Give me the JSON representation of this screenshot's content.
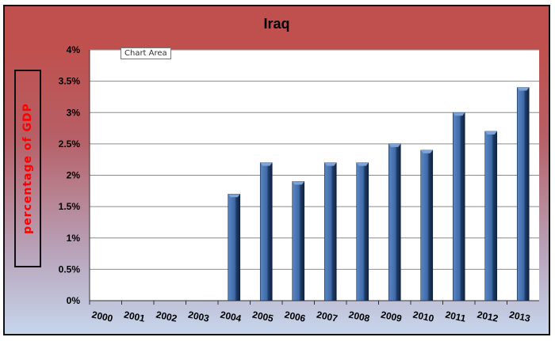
{
  "tooltip": {
    "label": "Chart Area"
  },
  "colors": {
    "bar_light": "#5b87c4",
    "bar_dark": "#1f3a64",
    "header": "#c0504d",
    "ylabel": "#ff0000"
  },
  "chart_data": {
    "type": "bar",
    "title": "Iraq",
    "xlabel": "",
    "ylabel": "percentage of GDP",
    "categories": [
      "2000",
      "2001",
      "2002",
      "2003",
      "2004",
      "2005",
      "2006",
      "2007",
      "2008",
      "2009",
      "2010",
      "2011",
      "2012",
      "2013"
    ],
    "values": [
      null,
      null,
      null,
      null,
      1.7,
      2.2,
      1.9,
      2.2,
      2.2,
      2.5,
      2.4,
      3.0,
      2.7,
      3.4
    ],
    "ylim": [
      0,
      4
    ],
    "yticks": [
      "0%",
      "0.5%",
      "1%",
      "1.5%",
      "2%",
      "2.5%",
      "3%",
      "3.5%",
      "4%"
    ],
    "grid": true,
    "legend": "none"
  }
}
